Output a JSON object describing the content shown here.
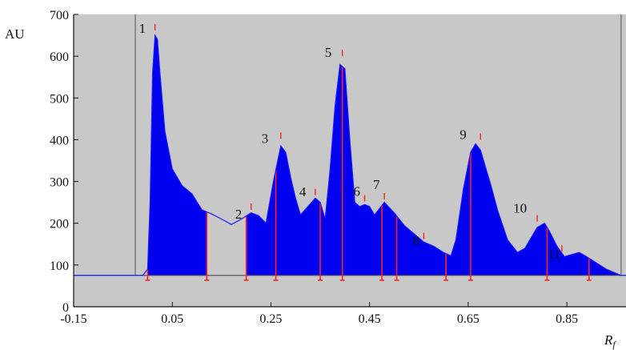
{
  "chart_data": {
    "type": "area",
    "xlabel": "R",
    "xlabel_sub": "f",
    "ylabel": "AU",
    "xlim": [
      -0.15,
      0.97
    ],
    "ylim": [
      0,
      700
    ],
    "xticks": [
      -0.15,
      0.05,
      0.25,
      0.45,
      0.65,
      0.85
    ],
    "xtick_labels": [
      "-0.15",
      "0.05",
      "0.25",
      "0.45",
      "0.65",
      "0.85"
    ],
    "yticks": [
      0,
      100,
      200,
      300,
      400,
      500,
      600,
      700
    ],
    "ytick_labels": [
      "0",
      "100",
      "200",
      "300",
      "400",
      "500",
      "600",
      "700"
    ],
    "baseline_value": 75,
    "grid": false,
    "colors": {
      "plot_background": "#c8c8c8",
      "fill": "#0000ee",
      "trace": "#1a1aff",
      "markers": "#ff2020",
      "baseline": "#555555"
    },
    "start_marker_x": -0.025,
    "end_marker_x": 0.96,
    "trace": {
      "x": [
        -0.15,
        -0.01,
        0.0,
        0.005,
        0.01,
        0.015,
        0.02,
        0.025,
        0.035,
        0.05,
        0.07,
        0.09,
        0.11,
        0.13,
        0.15,
        0.17,
        0.19,
        0.21,
        0.225,
        0.24,
        0.255,
        0.27,
        0.28,
        0.29,
        0.3,
        0.31,
        0.325,
        0.34,
        0.35,
        0.36,
        0.37,
        0.38,
        0.39,
        0.4,
        0.41,
        0.42,
        0.43,
        0.44,
        0.45,
        0.46,
        0.47,
        0.48,
        0.5,
        0.52,
        0.54,
        0.56,
        0.58,
        0.6,
        0.615,
        0.625,
        0.64,
        0.655,
        0.665,
        0.675,
        0.685,
        0.695,
        0.71,
        0.73,
        0.75,
        0.765,
        0.775,
        0.79,
        0.805,
        0.815,
        0.83,
        0.845,
        0.86,
        0.875,
        0.89,
        0.91,
        0.93,
        0.95,
        0.96,
        0.97
      ],
      "y": [
        75,
        75,
        90,
        250,
        560,
        650,
        640,
        560,
        420,
        330,
        290,
        270,
        232,
        222,
        210,
        197,
        210,
        225,
        218,
        200,
        300,
        385,
        370,
        310,
        260,
        220,
        240,
        260,
        250,
        210,
        330,
        480,
        580,
        570,
        400,
        250,
        240,
        245,
        240,
        220,
        235,
        250,
        225,
        195,
        175,
        155,
        145,
        130,
        122,
        160,
        280,
        370,
        390,
        375,
        335,
        295,
        230,
        160,
        130,
        140,
        160,
        190,
        200,
        180,
        145,
        120,
        125,
        130,
        120,
        105,
        90,
        80,
        75,
        75
      ]
    },
    "filled_intervals": [
      [
        0.0,
        0.12
      ],
      [
        0.2,
        0.96
      ]
    ],
    "segment_markers_x": [
      0.0,
      0.12,
      0.2,
      0.26,
      0.35,
      0.395,
      0.475,
      0.505,
      0.605,
      0.655,
      0.81,
      0.895
    ],
    "peaks": [
      {
        "label": "1",
        "x": 0.015,
        "y": 660
      },
      {
        "label": "2",
        "x": 0.21,
        "y": 230
      },
      {
        "label": "3",
        "x": 0.27,
        "y": 400
      },
      {
        "label": "4",
        "x": 0.34,
        "y": 265
      },
      {
        "label": "5",
        "x": 0.395,
        "y": 598
      },
      {
        "label": "6",
        "x": 0.44,
        "y": 250
      },
      {
        "label": "7",
        "x": 0.48,
        "y": 255
      },
      {
        "label": "8",
        "x": 0.56,
        "y": 160
      },
      {
        "label": "9",
        "x": 0.675,
        "y": 398
      },
      {
        "label": "10",
        "x": 0.79,
        "y": 202
      },
      {
        "label": "11",
        "x": 0.84,
        "y": 130
      }
    ]
  }
}
